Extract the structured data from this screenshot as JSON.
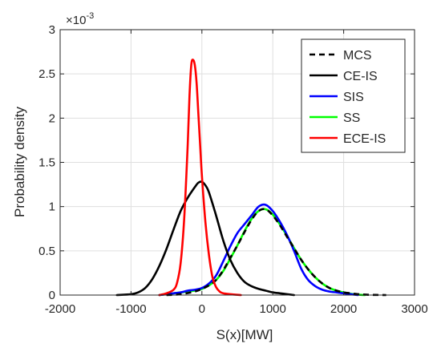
{
  "chart_data": {
    "type": "line",
    "title": "",
    "xlabel": "S(x)[MW]",
    "ylabel": "Probability density",
    "y_exponent_label": "×10",
    "y_exponent_power": "-3",
    "xlim": [
      -2000,
      3000
    ],
    "ylim": [
      0,
      3
    ],
    "xticks": [
      -2000,
      -1000,
      0,
      1000,
      2000,
      3000
    ],
    "xtick_labels": [
      "-2000",
      "-1000",
      "0",
      "1000",
      "2000",
      "3000"
    ],
    "yticks": [
      0,
      0.5,
      1,
      1.5,
      2,
      2.5,
      3
    ],
    "ytick_labels": [
      "0",
      "0.5",
      "1",
      "1.5",
      "2",
      "2.5",
      "3"
    ],
    "y_unit_scale": "1e-3",
    "grid": true,
    "legend_position": "top-right",
    "series": [
      {
        "name": "MCS",
        "color": "#000000",
        "dash": true,
        "x": [
          -500,
          -300,
          -100,
          0,
          100,
          200,
          300,
          400,
          500,
          600,
          700,
          800,
          900,
          1000,
          1100,
          1200,
          1300,
          1400,
          1500,
          1600,
          1700,
          1800,
          1900,
          2000,
          2100,
          2200,
          2300,
          2400,
          2500,
          2600
        ],
        "y": [
          0,
          0.01,
          0.04,
          0.07,
          0.11,
          0.17,
          0.28,
          0.42,
          0.56,
          0.71,
          0.85,
          0.95,
          0.97,
          0.9,
          0.79,
          0.66,
          0.53,
          0.4,
          0.29,
          0.2,
          0.13,
          0.08,
          0.05,
          0.03,
          0.02,
          0.01,
          0.005,
          0.002,
          0.001,
          0
        ]
      },
      {
        "name": "CE-IS",
        "color": "#000000",
        "dash": false,
        "x": [
          -1200,
          -1000,
          -900,
          -800,
          -700,
          -600,
          -500,
          -400,
          -300,
          -200,
          -100,
          -50,
          0,
          50,
          100,
          200,
          300,
          400,
          500,
          600,
          700,
          800,
          900,
          1000,
          1100,
          1200,
          1300
        ],
        "y": [
          0,
          0.01,
          0.03,
          0.08,
          0.18,
          0.33,
          0.52,
          0.74,
          0.95,
          1.1,
          1.22,
          1.27,
          1.28,
          1.24,
          1.16,
          0.9,
          0.62,
          0.4,
          0.25,
          0.15,
          0.1,
          0.07,
          0.05,
          0.03,
          0.02,
          0.01,
          0
        ]
      },
      {
        "name": "SIS",
        "color": "#0000ff",
        "dash": false,
        "x": [
          -600,
          -500,
          -400,
          -300,
          -200,
          -100,
          0,
          100,
          200,
          300,
          400,
          500,
          600,
          700,
          800,
          900,
          1000,
          1100,
          1200,
          1300,
          1400,
          1500,
          1600,
          1700,
          1800,
          1900,
          2000,
          2100,
          2200
        ],
        "y": [
          0,
          0.01,
          0.02,
          0.03,
          0.05,
          0.06,
          0.08,
          0.13,
          0.22,
          0.38,
          0.55,
          0.7,
          0.8,
          0.9,
          1.0,
          1.02,
          0.95,
          0.83,
          0.68,
          0.5,
          0.3,
          0.17,
          0.1,
          0.06,
          0.04,
          0.03,
          0.02,
          0.01,
          0
        ]
      },
      {
        "name": "SS",
        "color": "#00ff00",
        "dash": false,
        "x": [
          -600,
          -500,
          -300,
          -100,
          0,
          100,
          200,
          300,
          400,
          500,
          600,
          700,
          800,
          900,
          1000,
          1100,
          1200,
          1300,
          1400,
          1500,
          1600,
          1700,
          1800,
          1900,
          2000,
          2100,
          2200,
          2300
        ],
        "y": [
          0,
          0.01,
          0.03,
          0.05,
          0.07,
          0.11,
          0.17,
          0.27,
          0.41,
          0.56,
          0.72,
          0.86,
          0.95,
          0.97,
          0.91,
          0.8,
          0.67,
          0.53,
          0.4,
          0.29,
          0.2,
          0.13,
          0.08,
          0.05,
          0.03,
          0.015,
          0.005,
          0
        ]
      },
      {
        "name": "ECE-IS",
        "color": "#ff0000",
        "dash": false,
        "x": [
          -600,
          -500,
          -400,
          -350,
          -300,
          -250,
          -200,
          -175,
          -150,
          -125,
          -100,
          -75,
          -50,
          -25,
          0,
          50,
          100,
          150,
          200,
          250,
          300,
          400,
          550
        ],
        "y": [
          0,
          0.02,
          0.06,
          0.14,
          0.36,
          0.86,
          1.7,
          2.25,
          2.6,
          2.66,
          2.6,
          2.4,
          2.05,
          1.7,
          1.35,
          0.82,
          0.45,
          0.2,
          0.09,
          0.04,
          0.02,
          0.01,
          0
        ]
      }
    ]
  }
}
